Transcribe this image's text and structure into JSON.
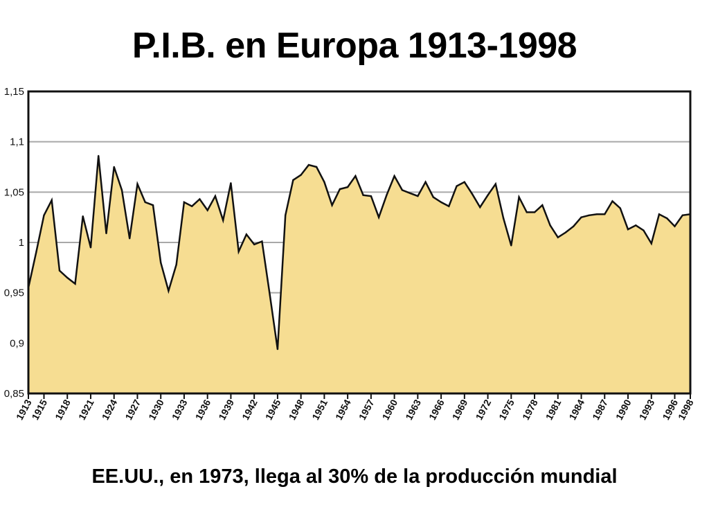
{
  "title": "P.I.B. en Europa 1913-1998",
  "caption": "EE.UU., en 1973, llega al 30% de la producción mundial",
  "colors": {
    "fill": "#f6dd92",
    "line": "#111111",
    "grid": "#a8a8a8",
    "frame": "#111111"
  },
  "chart_data": {
    "type": "area",
    "title": "P.I.B. en Europa 1913-1998",
    "xlabel": "",
    "ylabel": "",
    "ylim": [
      0.85,
      1.15
    ],
    "grid": true,
    "y_ticks": [
      "0,85",
      "0,9",
      "0,95",
      "1",
      "1,05",
      "1,1",
      "1,15"
    ],
    "y_tick_values": [
      0.85,
      0.9,
      0.95,
      1.0,
      1.05,
      1.1,
      1.15
    ],
    "x_ticks": [
      "1913",
      "1915",
      "1918",
      "1921",
      "1924",
      "1927",
      "1930",
      "1933",
      "1936",
      "1939",
      "1942",
      "1945",
      "1948",
      "1951",
      "1954",
      "1957",
      "1960",
      "1963",
      "1966",
      "1969",
      "1972",
      "1975",
      "1978",
      "1981",
      "1984",
      "1987",
      "1990",
      "1993",
      "1996",
      "1998"
    ],
    "x": [
      1913,
      1914,
      1915,
      1916,
      1917,
      1918,
      1919,
      1920,
      1921,
      1922,
      1923,
      1924,
      1925,
      1926,
      1927,
      1928,
      1929,
      1930,
      1931,
      1932,
      1933,
      1934,
      1935,
      1936,
      1937,
      1938,
      1939,
      1940,
      1941,
      1942,
      1943,
      1944,
      1945,
      1946,
      1947,
      1948,
      1949,
      1950,
      1951,
      1952,
      1953,
      1954,
      1955,
      1956,
      1957,
      1958,
      1959,
      1960,
      1961,
      1962,
      1963,
      1964,
      1965,
      1966,
      1967,
      1968,
      1969,
      1970,
      1971,
      1972,
      1973,
      1974,
      1975,
      1976,
      1977,
      1978,
      1979,
      1980,
      1981,
      1982,
      1983,
      1984,
      1985,
      1986,
      1987,
      1988,
      1989,
      1990,
      1991,
      1992,
      1993,
      1994,
      1995,
      1996,
      1997,
      1998
    ],
    "series": [
      {
        "values": [
          0.955,
          0.99,
          1.027,
          1.042,
          0.972,
          0.965,
          0.959,
          1.026,
          0.995,
          1.086,
          1.009,
          1.075,
          1.052,
          1.004,
          1.058,
          1.04,
          1.037,
          0.98,
          0.952,
          0.978,
          1.04,
          1.036,
          1.043,
          1.032,
          1.046,
          1.022,
          1.059,
          0.991,
          1.008,
          0.998,
          1.001,
          0.948,
          0.894,
          1.027,
          1.062,
          1.067,
          1.077,
          1.075,
          1.06,
          1.037,
          1.053,
          1.055,
          1.066,
          1.047,
          1.046,
          1.025,
          1.047,
          1.066,
          1.052,
          1.049,
          1.046,
          1.06,
          1.045,
          1.04,
          1.036,
          1.056,
          1.06,
          1.048,
          1.035,
          1.047,
          1.058,
          1.024,
          0.997,
          1.045,
          1.03,
          1.03,
          1.037,
          1.017,
          1.005,
          1.01,
          1.016,
          1.025,
          1.027,
          1.028,
          1.028,
          1.041,
          1.034,
          1.013,
          1.017,
          1.012,
          0.999,
          1.028,
          1.024,
          1.016,
          1.027,
          1.028
        ]
      }
    ]
  }
}
